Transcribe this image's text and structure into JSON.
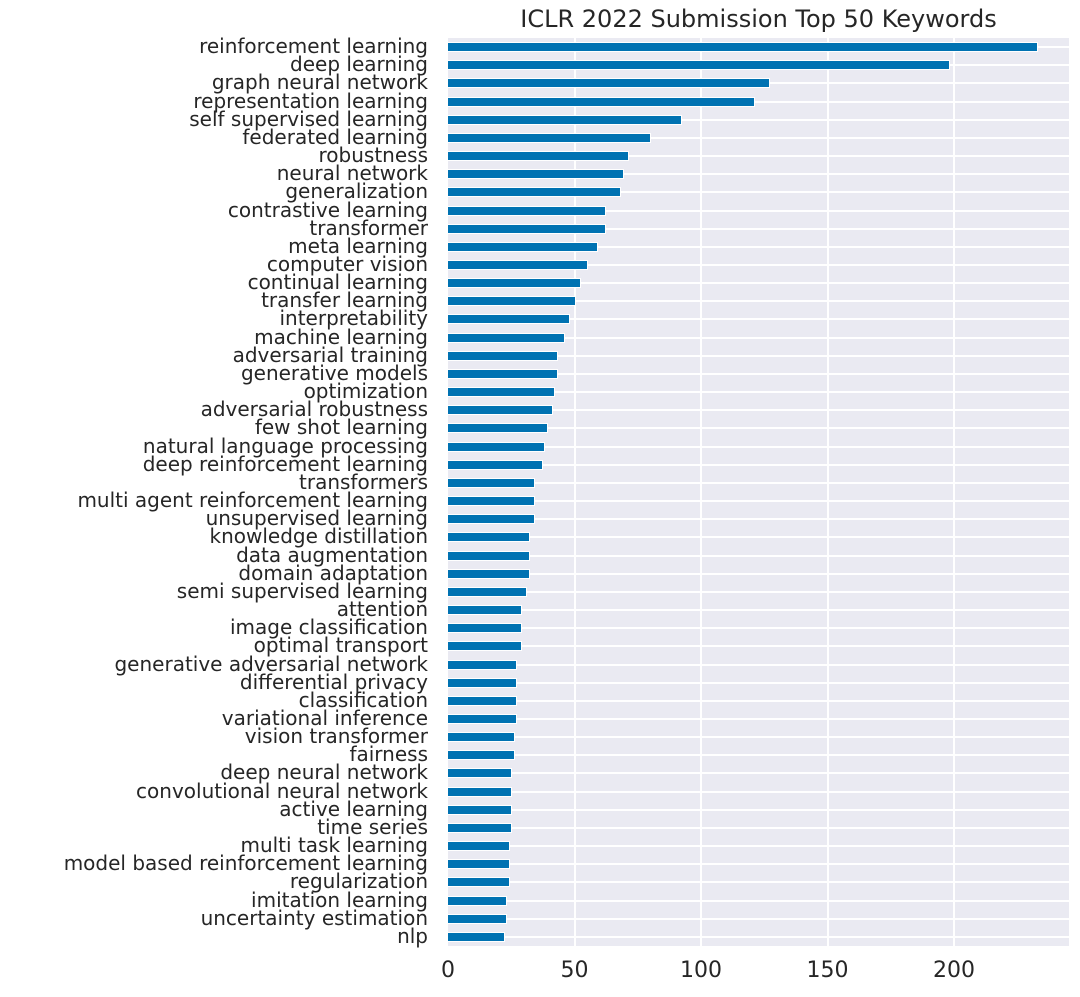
{
  "chart_data": {
    "type": "bar",
    "orientation": "horizontal",
    "title": "ICLR 2022 Submission Top 50 Keywords",
    "xlabel": "",
    "ylabel": "",
    "xlim": [
      0,
      245
    ],
    "xticks": [
      0,
      50,
      100,
      150,
      200
    ],
    "grid": true,
    "legend": null,
    "bar_color": "#0072B2",
    "background_color": "#EAEAF2",
    "categories": [
      "reinforcement learning",
      "deep learning",
      "graph neural network",
      "representation learning",
      "self supervised learning",
      "federated learning",
      "robustness",
      "neural network",
      "generalization",
      "contrastive learning",
      "transformer",
      "meta learning",
      "computer vision",
      "continual learning",
      "transfer learning",
      "interpretability",
      "machine learning",
      "adversarial training",
      "generative models",
      "optimization",
      "adversarial robustness",
      "few shot learning",
      "natural language processing",
      "deep reinforcement learning",
      "transformers",
      "multi agent reinforcement learning",
      "unsupervised learning",
      "knowledge distillation",
      "data augmentation",
      "domain adaptation",
      "semi supervised learning",
      "attention",
      "image classification",
      "optimal transport",
      "generative adversarial network",
      "differential privacy",
      "classification",
      "variational inference",
      "vision transformer",
      "fairness",
      "deep neural network",
      "convolutional neural network",
      "active learning",
      "time series",
      "multi task learning",
      "model based reinforcement learning",
      "regularization",
      "imitation learning",
      "uncertainty estimation",
      "nlp"
    ],
    "values": [
      233,
      198,
      127,
      121,
      92,
      80,
      71,
      69,
      68,
      62,
      62,
      59,
      55,
      52,
      50,
      48,
      46,
      43,
      43,
      42,
      41,
      39,
      38,
      37,
      34,
      34,
      34,
      32,
      32,
      32,
      31,
      29,
      29,
      29,
      27,
      27,
      27,
      27,
      26,
      26,
      25,
      25,
      25,
      25,
      24,
      24,
      24,
      23,
      23,
      22
    ]
  }
}
